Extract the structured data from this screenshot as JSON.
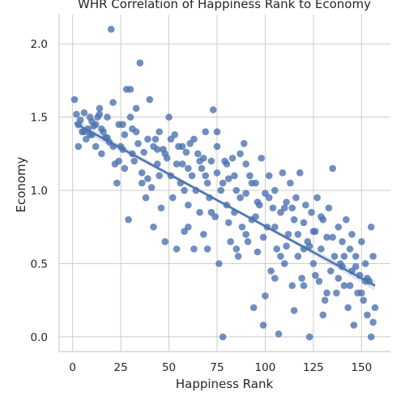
{
  "chart_data": {
    "type": "scatter",
    "title": "WHR Correlation of Happiness Rank to Economy",
    "xlabel": "Happiness Rank",
    "ylabel": "Economy",
    "xlim": [
      -7,
      165
    ],
    "ylim": [
      -0.1,
      2.2
    ],
    "x_ticks": [
      0,
      25,
      50,
      75,
      100,
      125,
      150
    ],
    "y_ticks": [
      0.0,
      0.5,
      1.0,
      1.5,
      2.0
    ],
    "x_tick_labels": [
      "0",
      "25",
      "50",
      "75",
      "100",
      "125",
      "150"
    ],
    "y_tick_labels": [
      "0.0",
      "0.5",
      "1.0",
      "1.5",
      "2.0"
    ],
    "grid": true,
    "regression": {
      "x_range": [
        1,
        157
      ],
      "y_start": 1.46,
      "y_end": 0.35,
      "ci_halfwidth_end": 0.035,
      "ci_halfwidth_mid": 0.012
    },
    "points": [
      [
        1,
        1.62
      ],
      [
        2,
        1.52
      ],
      [
        3,
        1.45
      ],
      [
        4,
        1.48
      ],
      [
        5,
        1.4
      ],
      [
        6,
        1.53
      ],
      [
        7,
        1.35
      ],
      [
        8,
        1.42
      ],
      [
        9,
        1.38
      ],
      [
        10,
        1.47
      ],
      [
        11,
        1.44
      ],
      [
        12,
        1.3
      ],
      [
        13,
        1.5
      ],
      [
        14,
        1.56
      ],
      [
        15,
        1.25
      ],
      [
        16,
        1.4
      ],
      [
        17,
        1.36
      ],
      [
        18,
        1.5
      ],
      [
        19,
        1.33
      ],
      [
        20,
        2.1
      ],
      [
        21,
        1.6
      ],
      [
        22,
        1.18
      ],
      [
        23,
        1.05
      ],
      [
        24,
        1.45
      ],
      [
        25,
        1.3
      ],
      [
        26,
        1.28
      ],
      [
        27,
        1.38
      ],
      [
        28,
        1.69
      ],
      [
        29,
        0.8
      ],
      [
        30,
        1.69
      ],
      [
        31,
        1.42
      ],
      [
        32,
        1.2
      ],
      [
        33,
        1.56
      ],
      [
        34,
        1.32
      ],
      [
        35,
        1.87
      ],
      [
        36,
        1.12
      ],
      [
        37,
        1.26
      ],
      [
        38,
        0.95
      ],
      [
        39,
        1.08
      ],
      [
        40,
        1.62
      ],
      [
        41,
        1.02
      ],
      [
        42,
        0.75
      ],
      [
        43,
        1.35
      ],
      [
        44,
        1.18
      ],
      [
        45,
        1.4
      ],
      [
        46,
        0.88
      ],
      [
        47,
        1.28
      ],
      [
        48,
        0.65
      ],
      [
        49,
        1.22
      ],
      [
        50,
        1.5
      ],
      [
        51,
        1.1
      ],
      [
        52,
        0.95
      ],
      [
        53,
        1.38
      ],
      [
        54,
        0.6
      ],
      [
        55,
        1.3
      ],
      [
        56,
        1.05
      ],
      [
        57,
        1.18
      ],
      [
        58,
        0.72
      ],
      [
        59,
        1.26
      ],
      [
        60,
        0.9
      ],
      [
        61,
        1.32
      ],
      [
        62,
        1.1
      ],
      [
        63,
        0.6
      ],
      [
        64,
        1.0
      ],
      [
        65,
        1.25
      ],
      [
        66,
        0.85
      ],
      [
        67,
        1.15
      ],
      [
        68,
        0.7
      ],
      [
        69,
        1.4
      ],
      [
        70,
        1.05
      ],
      [
        71,
        0.95
      ],
      [
        72,
        1.2
      ],
      [
        73,
        1.55
      ],
      [
        74,
        0.82
      ],
      [
        75,
        1.12
      ],
      [
        76,
        0.5
      ],
      [
        77,
        1.0
      ],
      [
        78,
        0.0
      ],
      [
        79,
        1.2
      ],
      [
        80,
        0.9
      ],
      [
        81,
        1.08
      ],
      [
        82,
        0.65
      ],
      [
        83,
        1.22
      ],
      [
        84,
        0.85
      ],
      [
        85,
        1.0
      ],
      [
        86,
        0.55
      ],
      [
        87,
        1.25
      ],
      [
        88,
        0.75
      ],
      [
        89,
        1.32
      ],
      [
        90,
        0.98
      ],
      [
        91,
        0.65
      ],
      [
        92,
        1.1
      ],
      [
        93,
        0.8
      ],
      [
        94,
        0.2
      ],
      [
        95,
        1.05
      ],
      [
        96,
        0.58
      ],
      [
        97,
        0.9
      ],
      [
        98,
        1.22
      ],
      [
        99,
        0.08
      ],
      [
        100,
        0.98
      ],
      [
        101,
        0.75
      ],
      [
        102,
        1.1
      ],
      [
        103,
        0.45
      ],
      [
        104,
        0.88
      ],
      [
        105,
        1.0
      ],
      [
        106,
        0.6
      ],
      [
        107,
        0.02
      ],
      [
        108,
        0.85
      ],
      [
        109,
        1.12
      ],
      [
        110,
        0.5
      ],
      [
        111,
        0.92
      ],
      [
        112,
        0.7
      ],
      [
        113,
        1.05
      ],
      [
        114,
        0.35
      ],
      [
        115,
        0.8
      ],
      [
        116,
        0.95
      ],
      [
        117,
        0.55
      ],
      [
        118,
        1.12
      ],
      [
        119,
        0.4
      ],
      [
        120,
        0.78
      ],
      [
        121,
        0.9
      ],
      [
        122,
        0.65
      ],
      [
        123,
        0.0
      ],
      [
        124,
        0.85
      ],
      [
        125,
        0.5
      ],
      [
        126,
        0.72
      ],
      [
        127,
        0.95
      ],
      [
        128,
        0.38
      ],
      [
        129,
        0.6
      ],
      [
        130,
        0.8
      ],
      [
        131,
        0.25
      ],
      [
        132,
        0.68
      ],
      [
        133,
        0.88
      ],
      [
        134,
        0.45
      ],
      [
        135,
        1.15
      ],
      [
        136,
        0.55
      ],
      [
        137,
        0.3
      ],
      [
        138,
        0.75
      ],
      [
        139,
        0.5
      ],
      [
        140,
        0.65
      ],
      [
        141,
        0.35
      ],
      [
        142,
        0.8
      ],
      [
        143,
        0.2
      ],
      [
        144,
        0.6
      ],
      [
        145,
        0.45
      ],
      [
        146,
        0.08
      ],
      [
        147,
        0.55
      ],
      [
        148,
        0.3
      ],
      [
        149,
        0.42
      ],
      [
        150,
        0.65
      ],
      [
        151,
        0.25
      ],
      [
        152,
        0.5
      ],
      [
        153,
        0.15
      ],
      [
        154,
        0.38
      ],
      [
        155,
        0.75
      ],
      [
        156,
        0.1
      ],
      [
        157,
        0.2
      ],
      [
        3,
        1.3
      ],
      [
        6,
        1.4
      ],
      [
        9,
        1.5
      ],
      [
        12,
        1.45
      ],
      [
        15,
        1.42
      ],
      [
        18,
        1.36
      ],
      [
        21,
        1.3
      ],
      [
        24,
        1.2
      ],
      [
        27,
        1.15
      ],
      [
        30,
        1.5
      ],
      [
        33,
        1.4
      ],
      [
        36,
        1.05
      ],
      [
        39,
        1.35
      ],
      [
        42,
        1.3
      ],
      [
        45,
        1.1
      ],
      [
        48,
        1.25
      ],
      [
        51,
        1.35
      ],
      [
        54,
        1.18
      ],
      [
        57,
        1.3
      ],
      [
        60,
        1.15
      ],
      [
        63,
        1.35
      ],
      [
        66,
        1.2
      ],
      [
        69,
        1.1
      ],
      [
        72,
        0.85
      ],
      [
        75,
        1.3
      ],
      [
        78,
        1.05
      ],
      [
        81,
        0.78
      ],
      [
        84,
        1.1
      ],
      [
        87,
        0.95
      ],
      [
        90,
        0.7
      ],
      [
        93,
        1.05
      ],
      [
        96,
        0.92
      ],
      [
        99,
        0.68
      ],
      [
        102,
        0.95
      ],
      [
        105,
        0.75
      ],
      [
        108,
        0.55
      ],
      [
        111,
        0.62
      ],
      [
        114,
        0.88
      ],
      [
        117,
        0.7
      ],
      [
        120,
        0.35
      ],
      [
        123,
        0.62
      ],
      [
        126,
        0.42
      ],
      [
        129,
        0.82
      ],
      [
        132,
        0.3
      ],
      [
        135,
        0.68
      ],
      [
        138,
        0.4
      ],
      [
        141,
        0.55
      ],
      [
        144,
        0.35
      ],
      [
        147,
        0.48
      ],
      [
        150,
        0.3
      ],
      [
        153,
        0.4
      ],
      [
        156,
        0.55
      ],
      [
        10,
        1.38
      ],
      [
        14,
        1.52
      ],
      [
        26,
        1.45
      ],
      [
        31,
        1.25
      ],
      [
        44,
        1.28
      ],
      [
        58,
        1.0
      ],
      [
        68,
        1.22
      ],
      [
        80,
        1.18
      ],
      [
        95,
        0.82
      ],
      [
        110,
        0.88
      ],
      [
        125,
        0.72
      ],
      [
        140,
        0.48
      ],
      [
        152,
        0.38
      ],
      [
        70,
        0.6
      ],
      [
        85,
        0.6
      ],
      [
        100,
        0.28
      ],
      [
        115,
        0.18
      ],
      [
        130,
        0.15
      ],
      [
        145,
        0.7
      ],
      [
        155,
        0.0
      ],
      [
        60,
        0.75
      ],
      [
        75,
        1.4
      ],
      [
        90,
        1.18
      ],
      [
        105,
        0.4
      ],
      [
        120,
        0.6
      ]
    ]
  }
}
